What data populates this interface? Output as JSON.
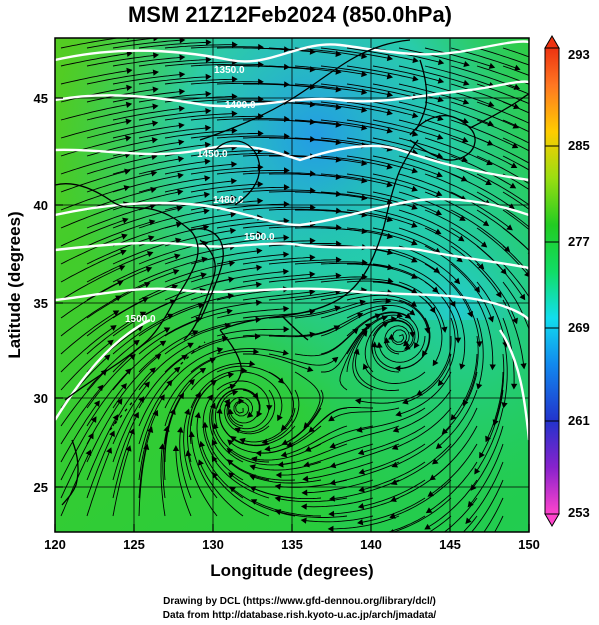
{
  "title": "MSM 21Z12Feb2024 (850.0hPa)",
  "x_axis": {
    "label": "Longitude (degrees)",
    "range": [
      120,
      150
    ],
    "ticks": [
      "120",
      "125",
      "130",
      "135",
      "140",
      "145",
      "150"
    ]
  },
  "y_axis": {
    "label": "Latitude  (degrees)",
    "range": [
      22.5,
      47.6
    ],
    "ticks": [
      "25",
      "30",
      "35",
      "40",
      "45"
    ]
  },
  "colorbar": {
    "range": [
      253,
      293
    ],
    "ticks": [
      "293",
      "285",
      "277",
      "269",
      "261",
      "253"
    ],
    "colors": [
      "#ff44cc",
      "#8822cc",
      "#2233cc",
      "#1188ee",
      "#11ddee",
      "#11dd66",
      "#22cc22",
      "#99dd11",
      "#ffcc00",
      "#ff7722",
      "#ee3311"
    ]
  },
  "contour_labels": [
    "1350.0",
    "1400.0",
    "1450.0",
    "1480.0",
    "1500.0",
    "1500.0"
  ],
  "credits": {
    "line1": "Drawing by DCL (https://www.gfd-dennou.org/library/dcl/)",
    "line2": "Data from http://database.rish.kyoto-u.ac.jp/arch/jmadata/"
  },
  "colors": {
    "background_green": "#33cc22",
    "cold_blue": "#33aaee",
    "coast": "#000000",
    "contour": "#ffffff",
    "frame": "#000000"
  }
}
